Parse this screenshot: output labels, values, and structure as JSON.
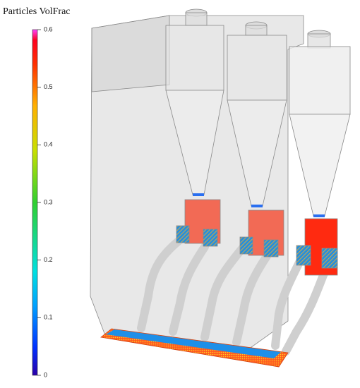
{
  "colorbar": {
    "title": "Particles VolFrac",
    "range": [
      0,
      0.6
    ],
    "ticks": [
      0,
      0.1,
      0.2,
      0.3,
      0.4,
      0.5,
      0.6
    ]
  }
}
